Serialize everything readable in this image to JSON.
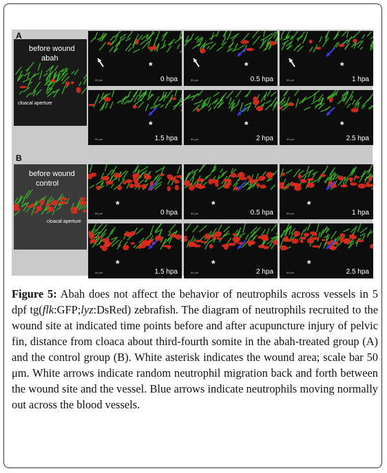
{
  "figure": {
    "panel_a": {
      "letter": "A",
      "before_label": "before wound",
      "group_label": "abah",
      "anatomy_label": "cloacal aperture",
      "time_labels": [
        "0 hpa",
        "0.5 hpa",
        "1 hpa",
        "1.5 hpa",
        "2 hpa",
        "2.5 hpa"
      ],
      "scale_label": "50 μm"
    },
    "panel_b": {
      "letter": "B",
      "before_label": "before wound",
      "group_label": "control",
      "anatomy_label": "cloacal aperture",
      "time_labels": [
        "0 hpa",
        "0.5 hpa",
        "1 hpa",
        "1.5 hpa",
        "2 hpa",
        "2.5 hpa"
      ],
      "scale_label": "50 μm"
    },
    "asterisk": "*",
    "colors": {
      "vessel_green": "#3fbf2a",
      "neutrophil_red": "#e02a1f",
      "blue_arrow": "#3a3ae8",
      "white_arrow": "#ffffff"
    }
  },
  "caption": {
    "label": "Figure 5:",
    "t1": " Abah does not affect the behavior of neutrophils across vessels in 5 dpf tg(",
    "i1": "flk",
    "t2": ":GFP;",
    "i2": "lyz",
    "t3": ":DsRed) zebrafish. The diagram of neutrophils recruited to the wound site at indicated time points before and after acupuncture injury of pelvic fin, distance from cloaca about third-fourth somite in the abah-treated group (A) and the control group (B). White asterisk indicates the wound area; scale bar 50 μm. White arrows indicate random neutrophil migration back and forth between the wound site and the vessel. Blue arrows indicate neutrophils moving normally out across the blood vessels."
  }
}
